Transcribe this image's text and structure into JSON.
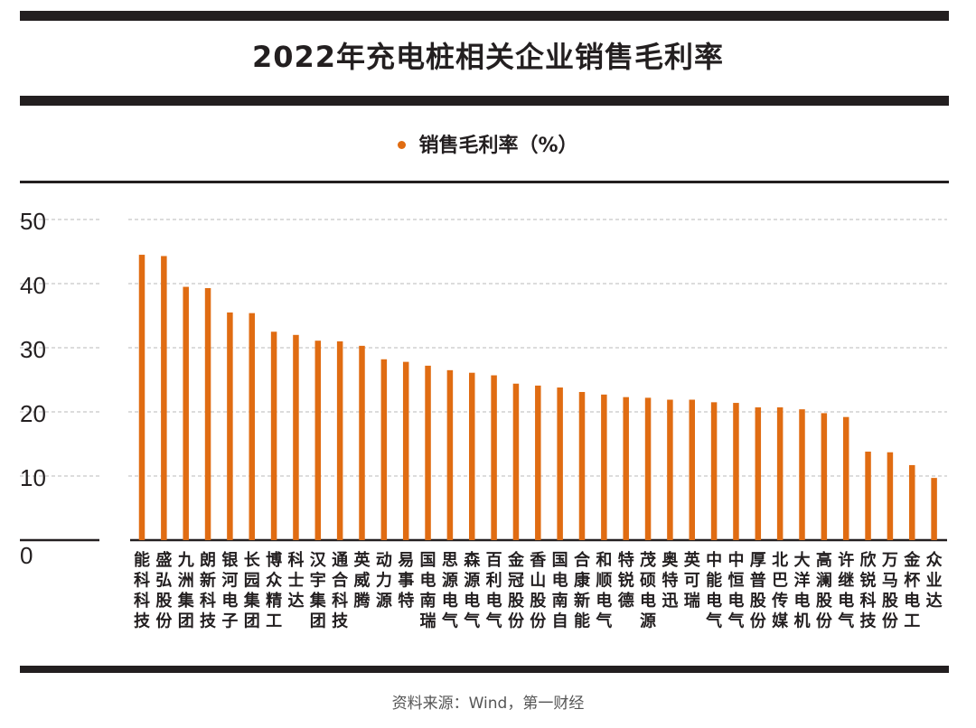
{
  "title": "2022年充电桩相关企业销售毛利率",
  "source": "资料来源：Wind，第一财经",
  "colors": {
    "bar": "#e06c12",
    "rule": "#231f20",
    "grid": "#c8c8c8"
  },
  "chart_data": {
    "type": "bar",
    "title": "2022年充电桩相关企业销售毛利率",
    "series": [
      {
        "name": "销售毛利率（%）",
        "color": "#e06c12"
      }
    ],
    "categories": [
      "能科科技",
      "盛弘股份",
      "九洲集团",
      "朗新科技",
      "银河电子",
      "长园集团",
      "博众精工",
      "科士达",
      "汉宇集团",
      "通合科技",
      "英威腾",
      "动力源",
      "易事特",
      "国电南瑞",
      "思源电气",
      "森源电气",
      "百利电气",
      "金冠股份",
      "香山股份",
      "国电南自",
      "合康新能",
      "和顺电气",
      "特锐德",
      "茂硕电源",
      "奥特迅",
      "英可瑞",
      "中能电气",
      "中恒电气",
      "厚普股份",
      "北巴传媒",
      "大洋电机",
      "高澜股份",
      "许继电气",
      "欣锐科技",
      "万马股份",
      "金杯电工",
      "众业达"
    ],
    "values": [
      44.5,
      44.3,
      39.5,
      39.3,
      35.5,
      35.4,
      32.5,
      32.0,
      31.1,
      31.0,
      30.3,
      28.2,
      27.8,
      27.2,
      26.5,
      26.1,
      25.7,
      24.4,
      24.1,
      23.8,
      23.1,
      22.7,
      22.3,
      22.2,
      21.9,
      21.9,
      21.5,
      21.4,
      20.7,
      20.7,
      20.4,
      19.8,
      19.2,
      13.8,
      13.7,
      11.7,
      9.7
    ],
    "ylim": [
      0,
      50
    ],
    "yticks": [
      "0",
      "10",
      "20",
      "30",
      "40",
      "50"
    ],
    "grid": true,
    "legend": "top-center"
  }
}
